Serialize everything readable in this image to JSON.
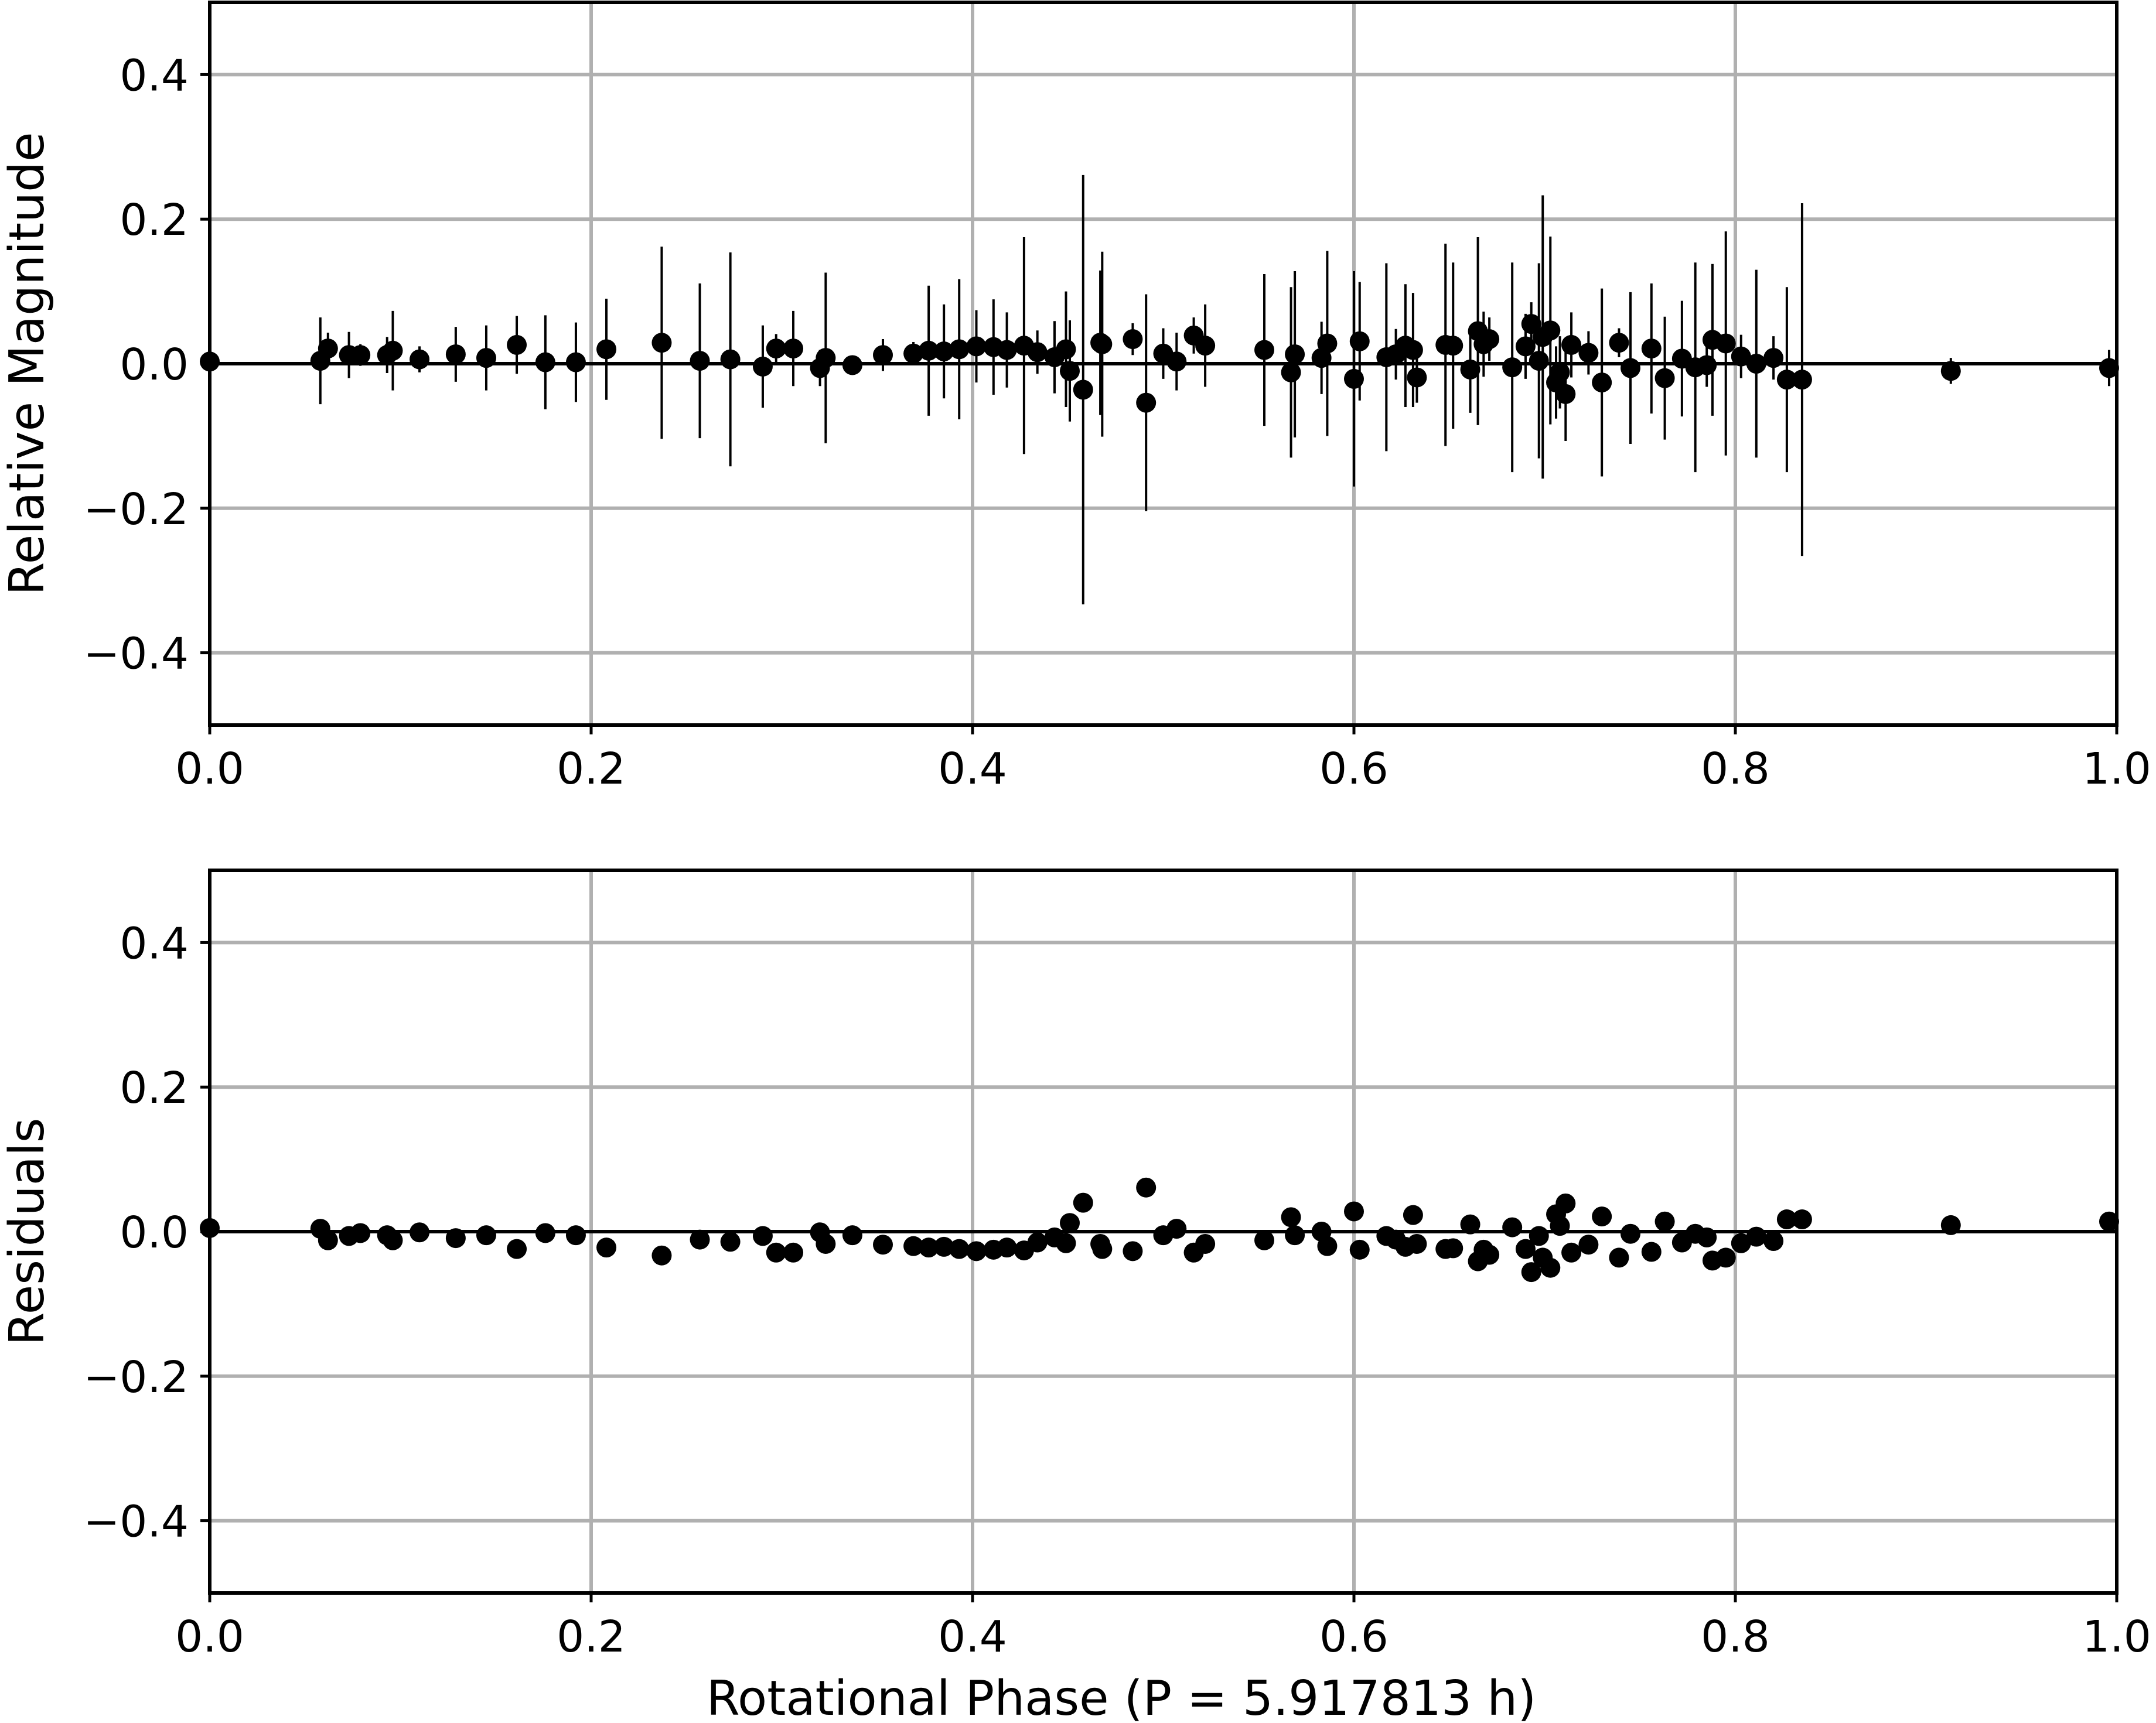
{
  "figure": {
    "xlabel": "Rotational Phase (P = 5.917813 h)"
  },
  "colors": {
    "marker": "#000000",
    "grid": "#b0b0b0",
    "axes": "#000000",
    "background": "#ffffff"
  },
  "chart_data": [
    {
      "type": "scatter",
      "panel": "top",
      "title": "",
      "xlabel": "",
      "ylabel": "Relative Magnitude",
      "xlim": [
        0.0,
        1.0
      ],
      "ylim": [
        -0.5,
        0.5
      ],
      "grid": true,
      "reference_line_y": 0.0,
      "xticks": [
        0.0,
        0.2,
        0.4,
        0.6,
        0.8,
        1.0
      ],
      "xtick_labels": [
        "0.0",
        "0.2",
        "0.4",
        "0.6",
        "0.8",
        "1.0"
      ],
      "yticks": [
        0.4,
        0.2,
        0.0,
        -0.2,
        -0.4
      ],
      "ytick_labels": [
        "0.4",
        "0.2",
        "0.0",
        "−0.2",
        "−0.4"
      ],
      "points": [
        {
          "x": 0.0,
          "y": 0.003,
          "err": 0.004
        },
        {
          "x": 0.058,
          "y": 0.004,
          "err": 0.06
        },
        {
          "x": 0.062,
          "y": 0.021,
          "err": 0.022
        },
        {
          "x": 0.073,
          "y": 0.012,
          "err": 0.032
        },
        {
          "x": 0.079,
          "y": 0.012,
          "err": 0.015
        },
        {
          "x": 0.093,
          "y": 0.012,
          "err": 0.025
        },
        {
          "x": 0.096,
          "y": 0.018,
          "err": 0.055
        },
        {
          "x": 0.11,
          "y": 0.006,
          "err": 0.018
        },
        {
          "x": 0.129,
          "y": 0.013,
          "err": 0.038
        },
        {
          "x": 0.145,
          "y": 0.008,
          "err": 0.045
        },
        {
          "x": 0.161,
          "y": 0.026,
          "err": 0.04
        },
        {
          "x": 0.176,
          "y": 0.002,
          "err": 0.065
        },
        {
          "x": 0.192,
          "y": 0.002,
          "err": 0.055
        },
        {
          "x": 0.208,
          "y": 0.02,
          "err": 0.07
        },
        {
          "x": 0.237,
          "y": 0.029,
          "err": 0.133
        },
        {
          "x": 0.257,
          "y": 0.004,
          "err": 0.107
        },
        {
          "x": 0.273,
          "y": 0.006,
          "err": 0.148
        },
        {
          "x": 0.29,
          "y": -0.004,
          "err": 0.057
        },
        {
          "x": 0.297,
          "y": 0.021,
          "err": 0.02
        },
        {
          "x": 0.306,
          "y": 0.021,
          "err": 0.052
        },
        {
          "x": 0.32,
          "y": -0.006,
          "err": 0.025
        },
        {
          "x": 0.323,
          "y": 0.008,
          "err": 0.118
        },
        {
          "x": 0.337,
          "y": -0.002,
          "err": 0.01
        },
        {
          "x": 0.353,
          "y": 0.012,
          "err": 0.022
        },
        {
          "x": 0.369,
          "y": 0.014,
          "err": 0.016
        },
        {
          "x": 0.377,
          "y": 0.018,
          "err": 0.09
        },
        {
          "x": 0.385,
          "y": 0.017,
          "err": 0.065
        },
        {
          "x": 0.393,
          "y": 0.02,
          "err": 0.097
        },
        {
          "x": 0.402,
          "y": 0.024,
          "err": 0.05
        },
        {
          "x": 0.411,
          "y": 0.023,
          "err": 0.066
        },
        {
          "x": 0.418,
          "y": 0.019,
          "err": 0.052
        },
        {
          "x": 0.427,
          "y": 0.025,
          "err": 0.15
        },
        {
          "x": 0.434,
          "y": 0.016,
          "err": 0.03
        },
        {
          "x": 0.443,
          "y": 0.009,
          "err": 0.05
        },
        {
          "x": 0.449,
          "y": 0.02,
          "err": 0.08
        },
        {
          "x": 0.451,
          "y": -0.01,
          "err": 0.07
        },
        {
          "x": 0.458,
          "y": -0.036,
          "err": 0.297
        },
        {
          "x": 0.467,
          "y": 0.029,
          "err": 0.1
        },
        {
          "x": 0.468,
          "y": 0.027,
          "err": 0.128
        },
        {
          "x": 0.484,
          "y": 0.034,
          "err": 0.022
        },
        {
          "x": 0.491,
          "y": -0.054,
          "err": 0.15
        },
        {
          "x": 0.5,
          "y": 0.014,
          "err": 0.035
        },
        {
          "x": 0.507,
          "y": 0.003,
          "err": 0.04
        },
        {
          "x": 0.516,
          "y": 0.039,
          "err": 0.025
        },
        {
          "x": 0.522,
          "y": 0.025,
          "err": 0.057
        },
        {
          "x": 0.553,
          "y": 0.019,
          "err": 0.105
        },
        {
          "x": 0.567,
          "y": -0.012,
          "err": 0.118
        },
        {
          "x": 0.569,
          "y": 0.013,
          "err": 0.115
        },
        {
          "x": 0.583,
          "y": 0.008,
          "err": 0.05
        },
        {
          "x": 0.586,
          "y": 0.028,
          "err": 0.128
        },
        {
          "x": 0.6,
          "y": -0.021,
          "err": 0.149
        },
        {
          "x": 0.603,
          "y": 0.031,
          "err": 0.082
        },
        {
          "x": 0.617,
          "y": 0.009,
          "err": 0.13
        },
        {
          "x": 0.622,
          "y": 0.013,
          "err": 0.035
        },
        {
          "x": 0.627,
          "y": 0.025,
          "err": 0.085
        },
        {
          "x": 0.631,
          "y": 0.019,
          "err": 0.079
        },
        {
          "x": 0.633,
          "y": -0.019,
          "err": 0.035
        },
        {
          "x": 0.648,
          "y": 0.026,
          "err": 0.14
        },
        {
          "x": 0.652,
          "y": 0.025,
          "err": 0.115
        },
        {
          "x": 0.661,
          "y": -0.008,
          "err": 0.06
        },
        {
          "x": 0.665,
          "y": 0.045,
          "err": 0.13
        },
        {
          "x": 0.668,
          "y": 0.027,
          "err": 0.045
        },
        {
          "x": 0.671,
          "y": 0.034,
          "err": 0.03
        },
        {
          "x": 0.683,
          "y": -0.005,
          "err": 0.145
        },
        {
          "x": 0.69,
          "y": 0.024,
          "err": 0.045
        },
        {
          "x": 0.693,
          "y": 0.055,
          "err": 0.03
        },
        {
          "x": 0.697,
          "y": 0.004,
          "err": 0.135
        },
        {
          "x": 0.699,
          "y": 0.037,
          "err": 0.196
        },
        {
          "x": 0.703,
          "y": 0.046,
          "err": 0.13
        },
        {
          "x": 0.706,
          "y": -0.026,
          "err": 0.05
        },
        {
          "x": 0.708,
          "y": -0.012,
          "err": 0.05
        },
        {
          "x": 0.711,
          "y": -0.042,
          "err": 0.065
        },
        {
          "x": 0.714,
          "y": 0.026,
          "err": 0.045
        },
        {
          "x": 0.723,
          "y": 0.015,
          "err": 0.03
        },
        {
          "x": 0.73,
          "y": -0.026,
          "err": 0.13
        },
        {
          "x": 0.739,
          "y": 0.029,
          "err": 0.02
        },
        {
          "x": 0.745,
          "y": -0.006,
          "err": 0.105
        },
        {
          "x": 0.756,
          "y": 0.021,
          "err": 0.09
        },
        {
          "x": 0.763,
          "y": -0.02,
          "err": 0.085
        },
        {
          "x": 0.772,
          "y": 0.007,
          "err": 0.08
        },
        {
          "x": 0.779,
          "y": -0.005,
          "err": 0.145
        },
        {
          "x": 0.785,
          "y": -0.002,
          "err": 0.03
        },
        {
          "x": 0.788,
          "y": 0.033,
          "err": 0.105
        },
        {
          "x": 0.795,
          "y": 0.028,
          "err": 0.155
        },
        {
          "x": 0.803,
          "y": 0.01,
          "err": 0.03
        },
        {
          "x": 0.811,
          "y": 0.0,
          "err": 0.13
        },
        {
          "x": 0.82,
          "y": 0.008,
          "err": 0.03
        },
        {
          "x": 0.827,
          "y": -0.022,
          "err": 0.128
        },
        {
          "x": 0.835,
          "y": -0.022,
          "err": 0.244
        },
        {
          "x": 0.913,
          "y": -0.01,
          "err": 0.018
        },
        {
          "x": 0.996,
          "y": -0.006,
          "err": 0.025
        }
      ]
    },
    {
      "type": "scatter",
      "panel": "bottom",
      "title": "",
      "xlabel": "Rotational Phase (P = 5.917813 h)",
      "ylabel": "Residuals",
      "xlim": [
        0.0,
        1.0
      ],
      "ylim": [
        -0.5,
        0.5
      ],
      "grid": true,
      "reference_line_y": 0.0,
      "xticks": [
        0.0,
        0.2,
        0.4,
        0.6,
        0.8,
        1.0
      ],
      "xtick_labels": [
        "0.0",
        "0.2",
        "0.4",
        "0.6",
        "0.8",
        "1.0"
      ],
      "yticks": [
        0.4,
        0.2,
        0.0,
        -0.2,
        -0.4
      ],
      "ytick_labels": [
        "0.4",
        "0.2",
        "0.0",
        "−0.2",
        "−0.4"
      ],
      "points": [
        {
          "x": 0.0,
          "y": 0.005
        },
        {
          "x": 0.058,
          "y": 0.004
        },
        {
          "x": 0.062,
          "y": -0.012
        },
        {
          "x": 0.073,
          "y": -0.006
        },
        {
          "x": 0.079,
          "y": -0.002
        },
        {
          "x": 0.093,
          "y": -0.005
        },
        {
          "x": 0.096,
          "y": -0.012
        },
        {
          "x": 0.11,
          "y": -0.001
        },
        {
          "x": 0.129,
          "y": -0.009
        },
        {
          "x": 0.145,
          "y": -0.005
        },
        {
          "x": 0.161,
          "y": -0.024
        },
        {
          "x": 0.176,
          "y": -0.002
        },
        {
          "x": 0.192,
          "y": -0.005
        },
        {
          "x": 0.208,
          "y": -0.022
        },
        {
          "x": 0.237,
          "y": -0.033
        },
        {
          "x": 0.257,
          "y": -0.011
        },
        {
          "x": 0.273,
          "y": -0.014
        },
        {
          "x": 0.29,
          "y": -0.006
        },
        {
          "x": 0.297,
          "y": -0.029
        },
        {
          "x": 0.306,
          "y": -0.029
        },
        {
          "x": 0.32,
          "y": -0.001
        },
        {
          "x": 0.323,
          "y": -0.017
        },
        {
          "x": 0.337,
          "y": -0.005
        },
        {
          "x": 0.353,
          "y": -0.018
        },
        {
          "x": 0.369,
          "y": -0.02
        },
        {
          "x": 0.377,
          "y": -0.022
        },
        {
          "x": 0.385,
          "y": -0.021
        },
        {
          "x": 0.393,
          "y": -0.024
        },
        {
          "x": 0.402,
          "y": -0.027
        },
        {
          "x": 0.411,
          "y": -0.025
        },
        {
          "x": 0.418,
          "y": -0.022
        },
        {
          "x": 0.427,
          "y": -0.026
        },
        {
          "x": 0.434,
          "y": -0.015
        },
        {
          "x": 0.443,
          "y": -0.008
        },
        {
          "x": 0.449,
          "y": -0.016
        },
        {
          "x": 0.451,
          "y": 0.012
        },
        {
          "x": 0.458,
          "y": 0.04
        },
        {
          "x": 0.467,
          "y": -0.017
        },
        {
          "x": 0.468,
          "y": -0.024
        },
        {
          "x": 0.484,
          "y": -0.027
        },
        {
          "x": 0.491,
          "y": 0.061
        },
        {
          "x": 0.5,
          "y": -0.005
        },
        {
          "x": 0.507,
          "y": 0.004
        },
        {
          "x": 0.516,
          "y": -0.029
        },
        {
          "x": 0.522,
          "y": -0.017
        },
        {
          "x": 0.553,
          "y": -0.012
        },
        {
          "x": 0.567,
          "y": 0.02
        },
        {
          "x": 0.569,
          "y": -0.005
        },
        {
          "x": 0.583,
          "y": 0.0
        },
        {
          "x": 0.586,
          "y": -0.02
        },
        {
          "x": 0.6,
          "y": 0.028
        },
        {
          "x": 0.603,
          "y": -0.025
        },
        {
          "x": 0.617,
          "y": -0.006
        },
        {
          "x": 0.622,
          "y": -0.011
        },
        {
          "x": 0.627,
          "y": -0.021
        },
        {
          "x": 0.631,
          "y": 0.023
        },
        {
          "x": 0.633,
          "y": -0.017
        },
        {
          "x": 0.648,
          "y": -0.024
        },
        {
          "x": 0.652,
          "y": -0.023
        },
        {
          "x": 0.661,
          "y": 0.01
        },
        {
          "x": 0.665,
          "y": -0.041
        },
        {
          "x": 0.668,
          "y": -0.025
        },
        {
          "x": 0.671,
          "y": -0.032
        },
        {
          "x": 0.683,
          "y": 0.006
        },
        {
          "x": 0.69,
          "y": -0.024
        },
        {
          "x": 0.693,
          "y": -0.056
        },
        {
          "x": 0.697,
          "y": -0.006
        },
        {
          "x": 0.699,
          "y": -0.036
        },
        {
          "x": 0.703,
          "y": -0.05
        },
        {
          "x": 0.706,
          "y": 0.024
        },
        {
          "x": 0.708,
          "y": 0.008
        },
        {
          "x": 0.711,
          "y": 0.039
        },
        {
          "x": 0.714,
          "y": -0.029
        },
        {
          "x": 0.723,
          "y": -0.018
        },
        {
          "x": 0.73,
          "y": 0.021
        },
        {
          "x": 0.739,
          "y": -0.036
        },
        {
          "x": 0.745,
          "y": -0.003
        },
        {
          "x": 0.756,
          "y": -0.028
        },
        {
          "x": 0.763,
          "y": 0.014
        },
        {
          "x": 0.772,
          "y": -0.015
        },
        {
          "x": 0.779,
          "y": -0.003
        },
        {
          "x": 0.785,
          "y": -0.008
        },
        {
          "x": 0.788,
          "y": -0.04
        },
        {
          "x": 0.795,
          "y": -0.036
        },
        {
          "x": 0.803,
          "y": -0.016
        },
        {
          "x": 0.811,
          "y": -0.007
        },
        {
          "x": 0.82,
          "y": -0.013
        },
        {
          "x": 0.827,
          "y": 0.017
        },
        {
          "x": 0.835,
          "y": 0.017
        },
        {
          "x": 0.913,
          "y": 0.009
        },
        {
          "x": 0.996,
          "y": 0.014
        }
      ]
    }
  ]
}
